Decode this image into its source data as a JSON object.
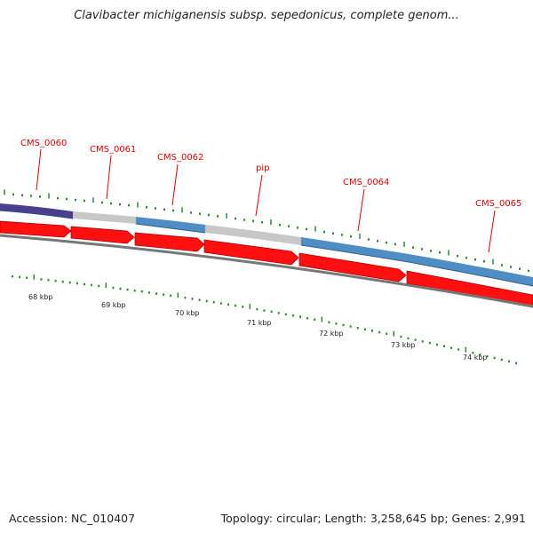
{
  "title": "Clavibacter michiganensis subsp. sepedonicus, complete genom...",
  "accession": "Accession: NC_010407",
  "summary": "Topology: circular; Length: 3,258,645 bp; Genes: 2,991",
  "colors": {
    "gene_label": "#e00000",
    "cds": "#ff1010",
    "feature_blue": "#4f8ec4",
    "feature_grey": "#c7c7c7",
    "feature_purple": "#4a3f8f",
    "backbone": "#777777",
    "tick": "#2e8b2e"
  },
  "gene_labels": [
    "CMS_0060",
    "CMS_0061",
    "CMS_0062",
    "pip",
    "CMS_0064",
    "CMS_0065"
  ],
  "kbp_labels": [
    "68 kbp",
    "69 kbp",
    "70 kbp",
    "71 kbp",
    "72 kbp",
    "73 kbp",
    "74 kbp"
  ]
}
